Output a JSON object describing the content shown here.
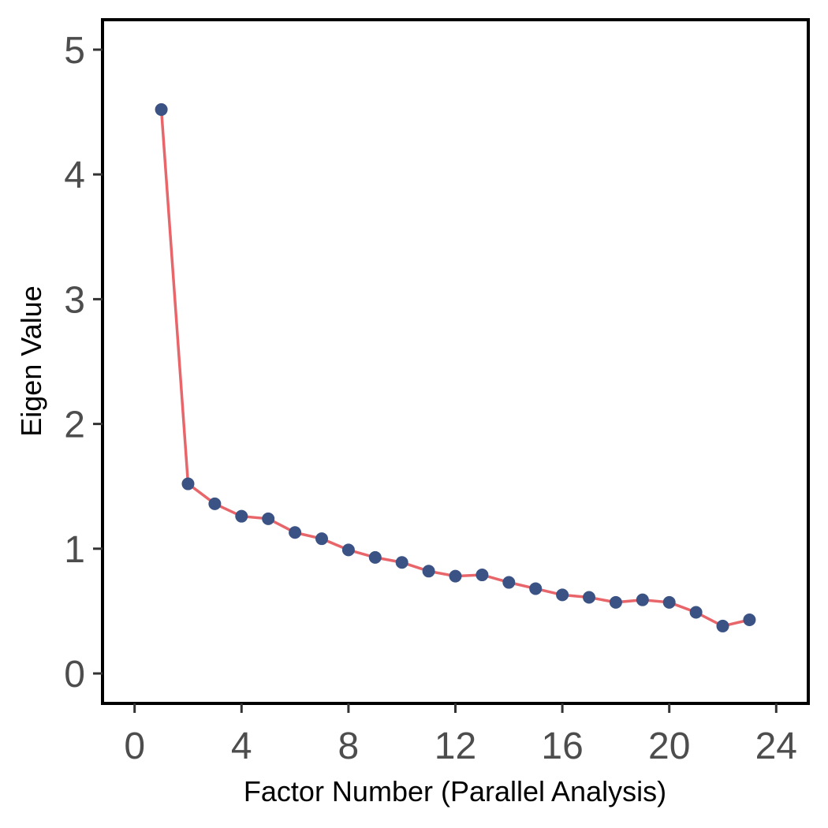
{
  "chart_data": {
    "type": "line",
    "title": "",
    "xlabel": "Factor Number (Parallel Analysis)",
    "ylabel": "Eigen Value",
    "xlim": [
      -1.2,
      25.2
    ],
    "ylim": [
      -0.24,
      5.24
    ],
    "x_ticks": [
      0,
      4,
      8,
      12,
      16,
      20,
      24
    ],
    "y_ticks": [
      0,
      1,
      2,
      3,
      4,
      5
    ],
    "grid": false,
    "legend": "none",
    "series": [
      {
        "x": [
          1,
          2,
          3,
          4,
          5,
          6,
          7,
          8,
          9,
          10,
          11,
          12,
          13,
          14,
          15,
          16,
          17,
          18,
          19,
          20,
          21,
          22,
          23
        ],
        "values": [
          4.52,
          1.52,
          1.36,
          1.26,
          1.24,
          1.13,
          1.08,
          0.99,
          0.93,
          0.89,
          0.82,
          0.78,
          0.79,
          0.73,
          0.68,
          0.63,
          0.61,
          0.57,
          0.59,
          0.57,
          0.49,
          0.38,
          0.43
        ]
      }
    ],
    "line_color": "#E8656A",
    "point_color": "#3A5284"
  }
}
